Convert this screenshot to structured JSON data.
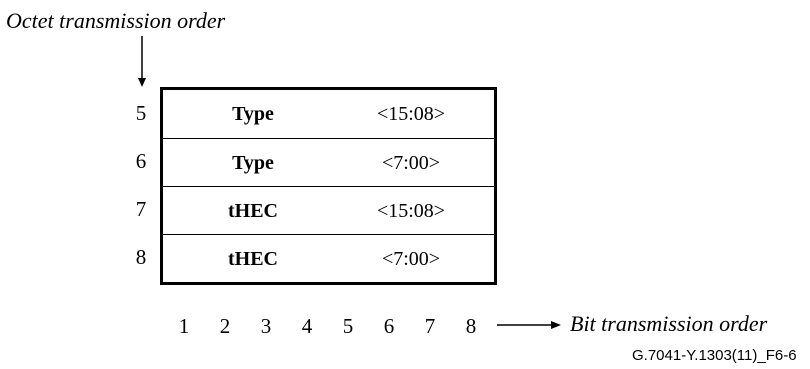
{
  "octet_order_label": "Octet transmission order",
  "bit_order_label": "Bit transmission order",
  "figure_id": "G.7041-Y.1303(11)_F6-6",
  "octets": [
    {
      "number": "5",
      "field": "Type",
      "range": "<15:08>"
    },
    {
      "number": "6",
      "field": "Type",
      "range": "<7:00>"
    },
    {
      "number": "7",
      "field": "tHEC",
      "range": "<15:08>"
    },
    {
      "number": "8",
      "field": "tHEC",
      "range": "<7:00>"
    }
  ],
  "bit_numbers": [
    "1",
    "2",
    "3",
    "4",
    "5",
    "6",
    "7",
    "8"
  ]
}
